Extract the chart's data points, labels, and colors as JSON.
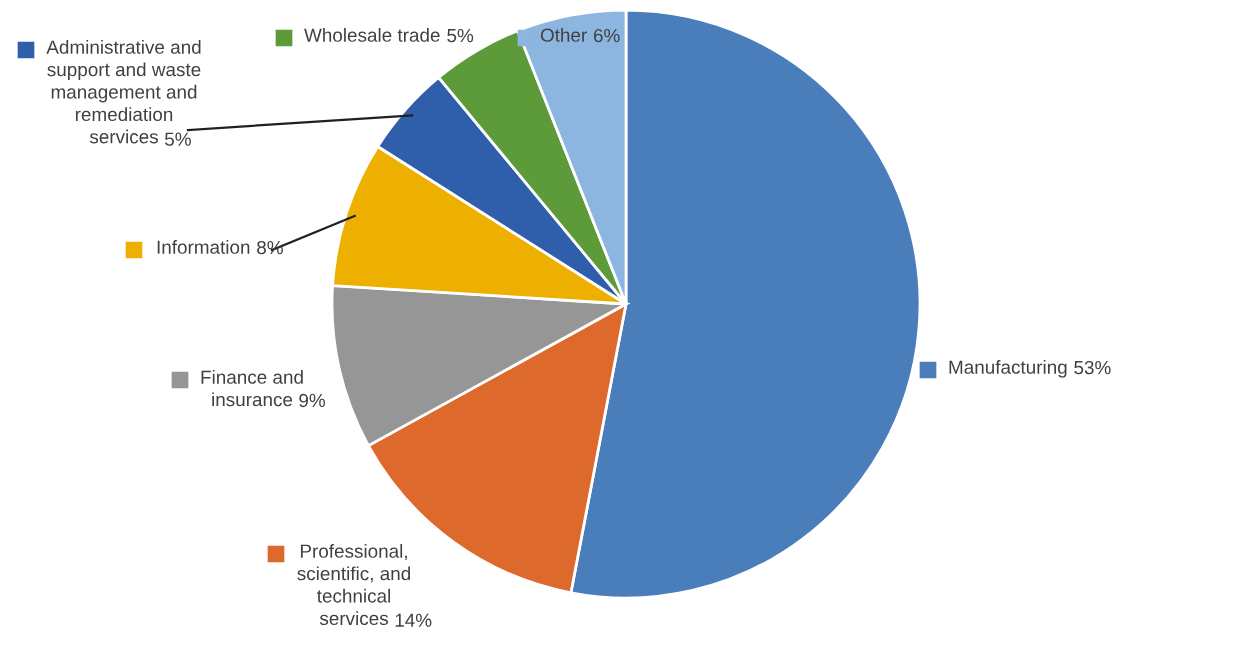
{
  "chart_data": {
    "type": "pie",
    "categories": [
      "Manufacturing",
      "Professional,\nscientific, and\ntechnical\nservices",
      "Finance and\ninsurance",
      "Information",
      "Administrative and\nsupport and waste\nmanagement and\nremediation\nservices",
      "Wholesale trade",
      "Other"
    ],
    "values": [
      53,
      14,
      9,
      8,
      5,
      5,
      6
    ],
    "colors": [
      "#4a7ebb",
      "#dd6a2c",
      "#969696",
      "#edb000",
      "#2f5fab",
      "#5c9a3a",
      "#8cb5e0"
    ],
    "value_labels": [
      "53%",
      "14%",
      "9%",
      "8%",
      "5%",
      "5%",
      "6%"
    ],
    "legend": "left"
  }
}
